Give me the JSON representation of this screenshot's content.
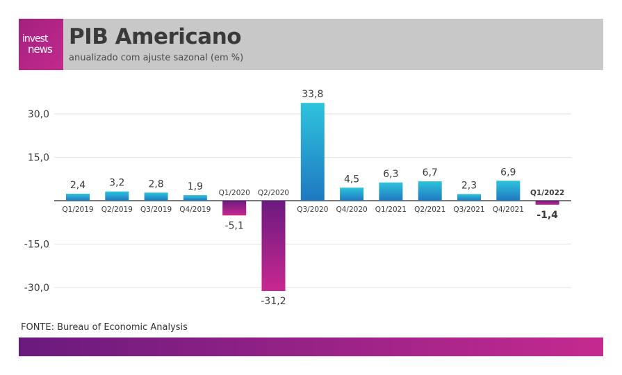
{
  "header": {
    "logo_line1": "invest",
    "logo_line2": "news",
    "title": "PIB Americano",
    "subtitle": "anualizado com ajuste sazonal (em %)"
  },
  "footer": {
    "source": "FONTE: Bureau of Economic Analysis"
  },
  "colors": {
    "positive_top": "#2ec3dc",
    "positive_bottom": "#1f78c1",
    "negative_top": "#6b1a80",
    "negative_bottom": "#c8288f",
    "highlight": "#a8287f"
  },
  "chart_data": {
    "type": "bar",
    "title": "PIB Americano",
    "subtitle": "anualizado com ajuste sazonal (em %)",
    "categories": [
      "Q1/2019",
      "Q2/2019",
      "Q3/2019",
      "Q4/2019",
      "Q1/2020",
      "Q2/2020",
      "Q3/2020",
      "Q4/2020",
      "Q1/2021",
      "Q2/2021",
      "Q3/2021",
      "Q4/2021",
      "Q1/2022"
    ],
    "values": [
      2.4,
      3.2,
      2.8,
      1.9,
      -5.1,
      -31.2,
      33.8,
      4.5,
      6.3,
      6.7,
      2.3,
      6.9,
      -1.4
    ],
    "value_labels": [
      "2,4",
      "3,2",
      "2,8",
      "1,9",
      "-5,1",
      "-31,2",
      "33,8",
      "4,5",
      "6,3",
      "6,7",
      "2,3",
      "6,9",
      "-1,4"
    ],
    "yticks": [
      30,
      15,
      -15,
      -30
    ],
    "ytick_labels": [
      "30,0",
      "15,0",
      "-15,0",
      "-30,0"
    ],
    "ylim": [
      -31.2,
      33.8
    ],
    "highlight_index": 12,
    "xlabel": "",
    "ylabel": "",
    "grid": true
  }
}
